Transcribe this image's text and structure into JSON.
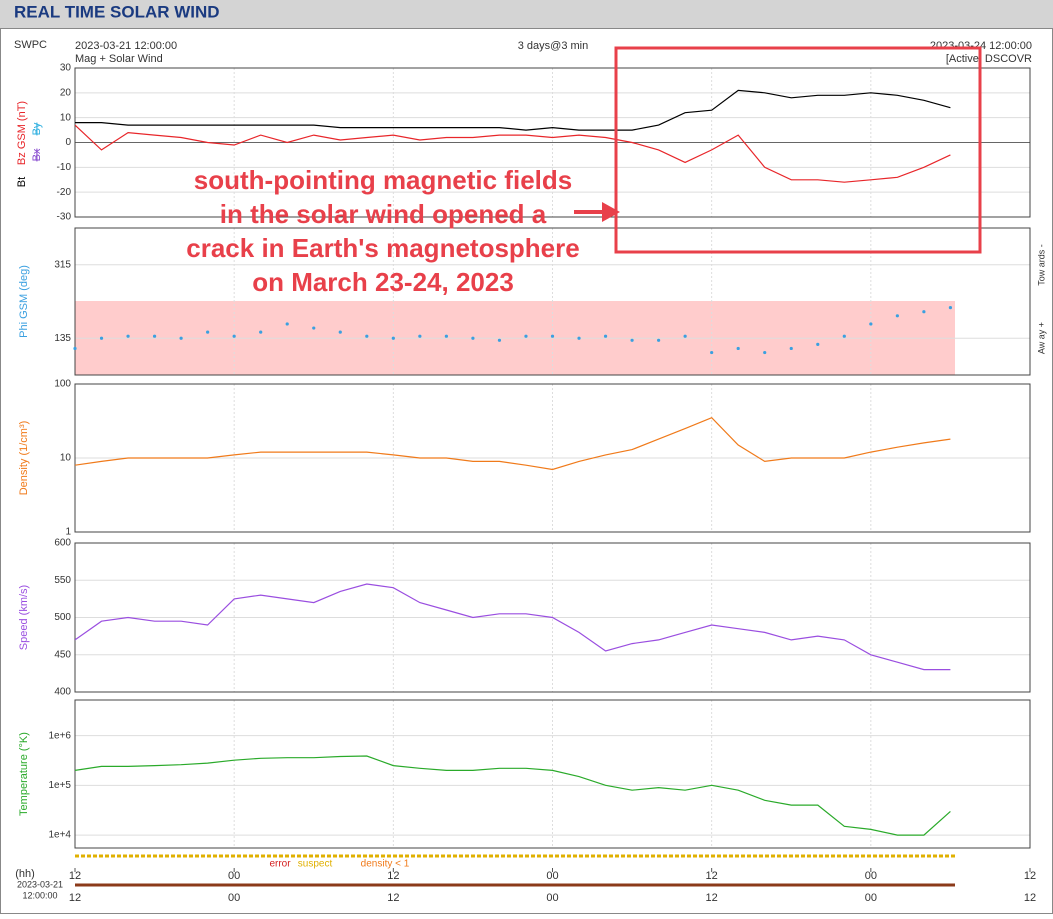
{
  "header": {
    "title": "REAL TIME SOLAR WIND",
    "source": "SWPC",
    "product": "Mag + Solar Wind",
    "span": "3 days@3 min",
    "status": "[Active] DSCOVR"
  },
  "annotation": {
    "lines": [
      "south-pointing magnetic fields",
      "in the solar wind opened a",
      "crack in Earth's magnetosphere",
      "on March 23-24, 2023"
    ]
  },
  "xaxis": {
    "xlim": [
      "2023-03-21 12:00:00",
      "2023-03-24 12:00:00"
    ],
    "label": "(hh)",
    "start_date": "2023-03-21",
    "start_time": "12:00:00",
    "xticks": [
      {
        "value": "2023-03-21 12:00:00",
        "label": "12"
      },
      {
        "value": "2023-03-22 00:00:00",
        "label": "00"
      },
      {
        "value": "2023-03-22 12:00:00",
        "label": "12"
      },
      {
        "value": "2023-03-23 00:00:00",
        "label": "00"
      },
      {
        "value": "2023-03-23 12:00:00",
        "label": "12"
      },
      {
        "value": "2023-03-24 00:00:00",
        "label": "00"
      },
      {
        "value": "2023-03-24 12:00:00",
        "label": "12"
      }
    ]
  },
  "quality_legend": [
    {
      "text": "error",
      "color": "#d42020"
    },
    {
      "text": "suspect",
      "color": "#e0b000"
    },
    {
      "text": "density < 1",
      "color": "#f07a1a"
    }
  ],
  "chart_data": [
    {
      "type": "line",
      "ylim": [
        -30,
        30
      ],
      "yticks": [
        -30,
        -20,
        -10,
        0,
        10,
        20,
        30
      ],
      "grid": true,
      "x": [
        "2023-03-21 12:00",
        "2023-03-21 14:00",
        "2023-03-21 16:00",
        "2023-03-21 18:00",
        "2023-03-21 20:00",
        "2023-03-21 22:00",
        "2023-03-22 00:00",
        "2023-03-22 02:00",
        "2023-03-22 04:00",
        "2023-03-22 06:00",
        "2023-03-22 08:00",
        "2023-03-22 10:00",
        "2023-03-22 12:00",
        "2023-03-22 14:00",
        "2023-03-22 16:00",
        "2023-03-22 18:00",
        "2023-03-22 20:00",
        "2023-03-22 22:00",
        "2023-03-23 00:00",
        "2023-03-23 02:00",
        "2023-03-23 04:00",
        "2023-03-23 06:00",
        "2023-03-23 08:00",
        "2023-03-23 10:00",
        "2023-03-23 12:00",
        "2023-03-23 14:00",
        "2023-03-23 16:00",
        "2023-03-23 18:00",
        "2023-03-23 20:00",
        "2023-03-23 22:00",
        "2023-03-24 00:00",
        "2023-03-24 02:00",
        "2023-03-24 04:00",
        "2023-03-24 06:00"
      ],
      "series": [
        {
          "name": "Bt",
          "color": "#000000",
          "values": [
            8,
            8,
            7,
            7,
            7,
            7,
            7,
            7,
            7,
            7,
            6,
            6,
            6,
            6,
            6,
            6,
            6,
            5,
            6,
            5,
            5,
            5,
            7,
            12,
            13,
            21,
            20,
            18,
            19,
            19,
            20,
            19,
            17,
            14
          ]
        },
        {
          "name": "Bz GSM (nT)",
          "color": "#e8262a",
          "values": [
            7,
            -3,
            4,
            3,
            2,
            0,
            -1,
            3,
            0,
            3,
            1,
            2,
            3,
            1,
            2,
            2,
            3,
            3,
            2,
            3,
            2,
            0,
            -3,
            -8,
            -3,
            3,
            -10,
            -15,
            -15,
            -16,
            -15,
            -14,
            -10,
            -5
          ]
        }
      ],
      "inactive_labels": [
        {
          "text": "Bx",
          "color": "#8a4ed0"
        },
        {
          "text": "By",
          "color": "#30b0e0"
        }
      ]
    },
    {
      "type": "scatter",
      "ylabel": "Phi GSM (deg)",
      "color": "#3aa0e0",
      "ylim": [
        45,
        405
      ],
      "yticks": [
        135,
        315
      ],
      "grid": true,
      "right_labels": [
        "Tow ards -",
        "Aw ay +"
      ],
      "x": [
        "2023-03-21 12:00",
        "2023-03-21 14:00",
        "2023-03-21 16:00",
        "2023-03-21 18:00",
        "2023-03-21 20:00",
        "2023-03-21 22:00",
        "2023-03-22 00:00",
        "2023-03-22 02:00",
        "2023-03-22 04:00",
        "2023-03-22 06:00",
        "2023-03-22 08:00",
        "2023-03-22 10:00",
        "2023-03-22 12:00",
        "2023-03-22 14:00",
        "2023-03-22 16:00",
        "2023-03-22 18:00",
        "2023-03-22 20:00",
        "2023-03-22 22:00",
        "2023-03-23 00:00",
        "2023-03-23 02:00",
        "2023-03-23 04:00",
        "2023-03-23 06:00",
        "2023-03-23 08:00",
        "2023-03-23 10:00",
        "2023-03-23 12:00",
        "2023-03-23 14:00",
        "2023-03-23 16:00",
        "2023-03-23 18:00",
        "2023-03-23 20:00",
        "2023-03-23 22:00",
        "2023-03-24 00:00",
        "2023-03-24 02:00",
        "2023-03-24 04:00",
        "2023-03-24 06:00"
      ],
      "values": [
        110,
        135,
        140,
        140,
        135,
        150,
        140,
        150,
        170,
        160,
        150,
        140,
        135,
        140,
        140,
        135,
        130,
        140,
        140,
        135,
        140,
        130,
        130,
        140,
        100,
        110,
        100,
        110,
        120,
        140,
        170,
        190,
        200,
        210
      ]
    },
    {
      "type": "line",
      "ylabel": "Density (1/cm³)",
      "color": "#f07a1a",
      "log": true,
      "ylim": [
        1,
        100
      ],
      "yticks": [
        1,
        10,
        100
      ],
      "grid": true,
      "x": [
        "2023-03-21 12:00",
        "2023-03-21 14:00",
        "2023-03-21 16:00",
        "2023-03-21 18:00",
        "2023-03-21 20:00",
        "2023-03-21 22:00",
        "2023-03-22 00:00",
        "2023-03-22 02:00",
        "2023-03-22 04:00",
        "2023-03-22 06:00",
        "2023-03-22 08:00",
        "2023-03-22 10:00",
        "2023-03-22 12:00",
        "2023-03-22 14:00",
        "2023-03-22 16:00",
        "2023-03-22 18:00",
        "2023-03-22 20:00",
        "2023-03-22 22:00",
        "2023-03-23 00:00",
        "2023-03-23 02:00",
        "2023-03-23 04:00",
        "2023-03-23 06:00",
        "2023-03-23 08:00",
        "2023-03-23 10:00",
        "2023-03-23 12:00",
        "2023-03-23 14:00",
        "2023-03-23 16:00",
        "2023-03-23 18:00",
        "2023-03-23 20:00",
        "2023-03-23 22:00",
        "2023-03-24 00:00",
        "2023-03-24 02:00",
        "2023-03-24 04:00",
        "2023-03-24 06:00"
      ],
      "values": [
        8,
        9,
        10,
        10,
        10,
        10,
        11,
        12,
        12,
        12,
        12,
        12,
        11,
        10,
        10,
        9,
        9,
        8,
        7,
        9,
        11,
        13,
        18,
        25,
        35,
        15,
        9,
        10,
        10,
        10,
        12,
        14,
        16,
        18
      ]
    },
    {
      "type": "line",
      "ylabel": "Speed (km/s)",
      "color": "#9a4ee0",
      "ylim": [
        400,
        600
      ],
      "yticks": [
        400,
        450,
        500,
        550,
        600
      ],
      "grid": true,
      "x": [
        "2023-03-21 12:00",
        "2023-03-21 14:00",
        "2023-03-21 16:00",
        "2023-03-21 18:00",
        "2023-03-21 20:00",
        "2023-03-21 22:00",
        "2023-03-22 00:00",
        "2023-03-22 02:00",
        "2023-03-22 04:00",
        "2023-03-22 06:00",
        "2023-03-22 08:00",
        "2023-03-22 10:00",
        "2023-03-22 12:00",
        "2023-03-22 14:00",
        "2023-03-22 16:00",
        "2023-03-22 18:00",
        "2023-03-22 20:00",
        "2023-03-22 22:00",
        "2023-03-23 00:00",
        "2023-03-23 02:00",
        "2023-03-23 04:00",
        "2023-03-23 06:00",
        "2023-03-23 08:00",
        "2023-03-23 10:00",
        "2023-03-23 12:00",
        "2023-03-23 14:00",
        "2023-03-23 16:00",
        "2023-03-23 18:00",
        "2023-03-23 20:00",
        "2023-03-23 22:00",
        "2023-03-24 00:00",
        "2023-03-24 02:00",
        "2023-03-24 04:00",
        "2023-03-24 06:00"
      ],
      "values": [
        470,
        495,
        500,
        495,
        495,
        490,
        525,
        530,
        525,
        520,
        535,
        545,
        540,
        520,
        510,
        500,
        505,
        505,
        500,
        480,
        455,
        465,
        470,
        480,
        490,
        485,
        480,
        470,
        475,
        470,
        450,
        440,
        430,
        430
      ]
    },
    {
      "type": "line",
      "ylabel": "Temperature (°K)",
      "color": "#2aaa2a",
      "log": true,
      "ylim": [
        5500,
        5200000
      ],
      "yticks": [
        {
          "value": 10000,
          "label": "1e+4"
        },
        {
          "value": 100000,
          "label": "1e+5"
        },
        {
          "value": 1000000,
          "label": "1e+6"
        }
      ],
      "grid": true,
      "x": [
        "2023-03-21 12:00",
        "2023-03-21 14:00",
        "2023-03-21 16:00",
        "2023-03-21 18:00",
        "2023-03-21 20:00",
        "2023-03-21 22:00",
        "2023-03-22 00:00",
        "2023-03-22 02:00",
        "2023-03-22 04:00",
        "2023-03-22 06:00",
        "2023-03-22 08:00",
        "2023-03-22 10:00",
        "2023-03-22 12:00",
        "2023-03-22 14:00",
        "2023-03-22 16:00",
        "2023-03-22 18:00",
        "2023-03-22 20:00",
        "2023-03-22 22:00",
        "2023-03-23 00:00",
        "2023-03-23 02:00",
        "2023-03-23 04:00",
        "2023-03-23 06:00",
        "2023-03-23 08:00",
        "2023-03-23 10:00",
        "2023-03-23 12:00",
        "2023-03-23 14:00",
        "2023-03-23 16:00",
        "2023-03-23 18:00",
        "2023-03-23 20:00",
        "2023-03-23 22:00",
        "2023-03-24 00:00",
        "2023-03-24 02:00",
        "2023-03-24 04:00",
        "2023-03-24 06:00"
      ],
      "values": [
        200000,
        240000,
        240000,
        250000,
        260000,
        280000,
        320000,
        350000,
        360000,
        360000,
        380000,
        390000,
        250000,
        220000,
        200000,
        200000,
        220000,
        220000,
        200000,
        150000,
        100000,
        80000,
        90000,
        80000,
        100000,
        80000,
        50000,
        40000,
        40000,
        15000,
        13000,
        10000,
        10000,
        30000
      ]
    }
  ]
}
